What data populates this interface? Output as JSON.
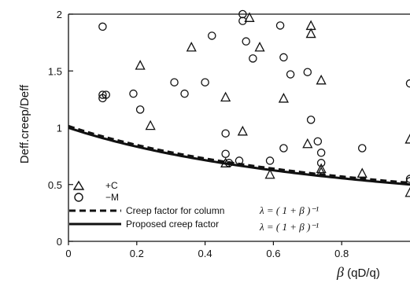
{
  "chart_data": {
    "type": "scatter",
    "xlabel_symbol": "β",
    "xlabel_unit": " (qD/q)",
    "ylabel": "Deff.creep/Deff",
    "xlim": [
      0,
      1
    ],
    "ylim": [
      0,
      2
    ],
    "x_ticks": [
      "0",
      "0.2",
      "0.4",
      "0.6",
      "0.8"
    ],
    "y_ticks": [
      "0",
      "0.5",
      "1",
      "1.5",
      "2"
    ],
    "grid": false,
    "legend_position": "bottom-left",
    "series": [
      {
        "name": "+C",
        "marker": "triangle",
        "points": [
          {
            "x": 0.21,
            "y": 1.55
          },
          {
            "x": 0.24,
            "y": 1.02
          },
          {
            "x": 0.36,
            "y": 1.71
          },
          {
            "x": 0.46,
            "y": 1.27
          },
          {
            "x": 0.46,
            "y": 0.69
          },
          {
            "x": 0.51,
            "y": 0.97
          },
          {
            "x": 0.53,
            "y": 1.97
          },
          {
            "x": 0.56,
            "y": 1.71
          },
          {
            "x": 0.59,
            "y": 0.59
          },
          {
            "x": 0.63,
            "y": 1.26
          },
          {
            "x": 0.7,
            "y": 0.86
          },
          {
            "x": 0.71,
            "y": 1.9
          },
          {
            "x": 0.71,
            "y": 1.83
          },
          {
            "x": 0.74,
            "y": 1.42
          },
          {
            "x": 0.74,
            "y": 0.61
          },
          {
            "x": 0.74,
            "y": 0.64
          },
          {
            "x": 0.86,
            "y": 0.6
          },
          {
            "x": 1.0,
            "y": 0.9
          },
          {
            "x": 1.0,
            "y": 0.43
          }
        ]
      },
      {
        "name": "−M",
        "marker": "circle",
        "points": [
          {
            "x": 0.1,
            "y": 1.89
          },
          {
            "x": 0.1,
            "y": 1.26
          },
          {
            "x": 0.1,
            "y": 1.29
          },
          {
            "x": 0.11,
            "y": 1.29
          },
          {
            "x": 0.19,
            "y": 1.3
          },
          {
            "x": 0.21,
            "y": 1.16
          },
          {
            "x": 0.31,
            "y": 1.4
          },
          {
            "x": 0.34,
            "y": 1.3
          },
          {
            "x": 0.4,
            "y": 1.4
          },
          {
            "x": 0.42,
            "y": 1.81
          },
          {
            "x": 0.46,
            "y": 0.95
          },
          {
            "x": 0.46,
            "y": 0.77
          },
          {
            "x": 0.47,
            "y": 0.69
          },
          {
            "x": 0.5,
            "y": 0.71
          },
          {
            "x": 0.51,
            "y": 2.0
          },
          {
            "x": 0.51,
            "y": 1.94
          },
          {
            "x": 0.52,
            "y": 1.76
          },
          {
            "x": 0.54,
            "y": 1.61
          },
          {
            "x": 0.59,
            "y": 0.71
          },
          {
            "x": 0.62,
            "y": 1.9
          },
          {
            "x": 0.63,
            "y": 1.62
          },
          {
            "x": 0.63,
            "y": 0.82
          },
          {
            "x": 0.65,
            "y": 1.47
          },
          {
            "x": 0.7,
            "y": 1.49
          },
          {
            "x": 0.71,
            "y": 1.07
          },
          {
            "x": 0.73,
            "y": 0.88
          },
          {
            "x": 0.74,
            "y": 0.78
          },
          {
            "x": 0.74,
            "y": 0.69
          },
          {
            "x": 0.86,
            "y": 0.82
          },
          {
            "x": 1.0,
            "y": 1.39
          },
          {
            "x": 1.0,
            "y": 0.55
          },
          {
            "x": 1.0,
            "y": 0.53
          }
        ]
      }
    ],
    "curves": [
      {
        "name": "Creep factor for column",
        "style": "dashed",
        "formula": "λ = (1 + β)⁻¹",
        "y_offset": 0.015
      },
      {
        "name": "Proposed creep factor",
        "style": "solid",
        "formula": "λ = (1 + β)⁻¹",
        "y_offset": 0
      }
    ]
  },
  "legend": {
    "triangle_label": "+C",
    "circle_label": "−M",
    "dashed_label": "Creep factor for column",
    "solid_label": "Proposed creep factor",
    "dashed_formula": "λ = ( 1 + β )⁻¹",
    "solid_formula": "λ = ( 1 + β )⁻¹"
  }
}
